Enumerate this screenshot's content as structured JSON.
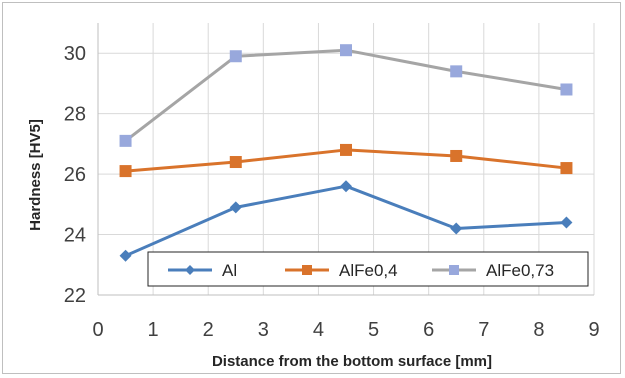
{
  "chart_data": {
    "type": "line",
    "xlabel": "Distance from the bottom surface [mm]",
    "ylabel": "Hardness [HV5]",
    "xlim": [
      0,
      9
    ],
    "ylim": [
      22,
      31
    ],
    "x_ticks": [
      "0",
      "1",
      "2",
      "3",
      "4",
      "5",
      "6",
      "7",
      "8",
      "9"
    ],
    "y_ticks": [
      "22",
      "24",
      "26",
      "28",
      "30"
    ],
    "grid": "horizontal and vertical",
    "legend_position": "bottom-center-inside",
    "series": [
      {
        "name": "Al",
        "color": "#4a7ebb",
        "marker": "diamond",
        "x": [
          0.5,
          2.5,
          4.5,
          6.5,
          8.5
        ],
        "values": [
          23.3,
          24.9,
          25.6,
          24.2,
          24.4
        ]
      },
      {
        "name": "AlFe0,4",
        "color": "#d9732b",
        "marker": "square",
        "x": [
          0.5,
          2.5,
          4.5,
          6.5,
          8.5
        ],
        "values": [
          26.1,
          26.4,
          26.8,
          26.6,
          26.2
        ]
      },
      {
        "name": "AlFe0,73",
        "color": "#a5a5a5",
        "marker_color": "#98a8dc",
        "marker": "square",
        "x": [
          0.5,
          2.5,
          4.5,
          6.5,
          8.5
        ],
        "values": [
          27.1,
          29.9,
          30.1,
          29.4,
          28.8
        ]
      }
    ]
  }
}
